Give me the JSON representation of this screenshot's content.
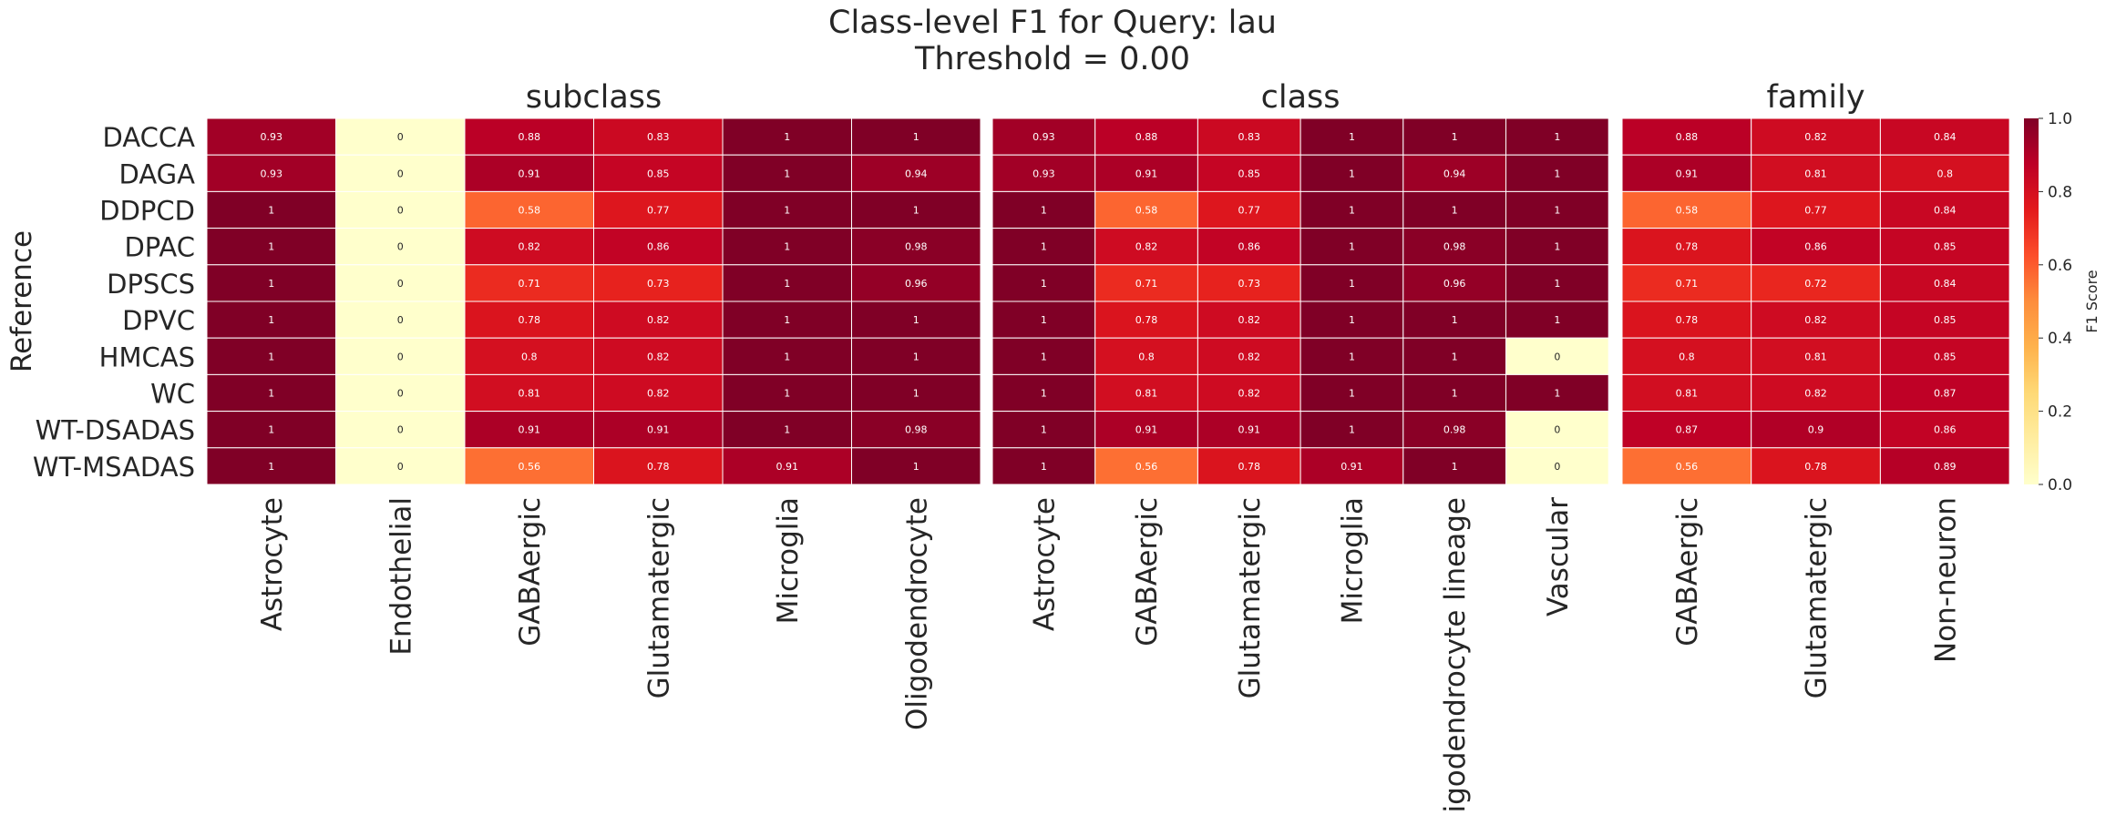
{
  "chart_data": {
    "type": "heatmap",
    "title": "Class-level F1 for Query: lau",
    "subtitle": "Threshold = 0.00",
    "ylabel": "Reference",
    "rows": [
      "DACCA",
      "DAGA",
      "DDPCD",
      "DPAC",
      "DPSCS",
      "DPVC",
      "HMCAS",
      "WC",
      "WT-DSADAS",
      "WT-MSADAS"
    ],
    "colorbar": {
      "label": "F1 Score",
      "range": [
        0.0,
        1.0
      ],
      "ticks": [
        "0.0",
        "0.2",
        "0.4",
        "0.6",
        "0.8",
        "1.0"
      ],
      "colormap": "YlOrRd"
    },
    "panels": [
      {
        "title": "subclass",
        "columns": [
          "Astrocyte",
          "Endothelial",
          "GABAergic",
          "Glutamatergic",
          "Microglia",
          "Oligodendrocyte"
        ],
        "values": [
          [
            0.93,
            0,
            0.88,
            0.83,
            1,
            1
          ],
          [
            0.93,
            0,
            0.91,
            0.85,
            1,
            0.94
          ],
          [
            1,
            0,
            0.58,
            0.77,
            1,
            1
          ],
          [
            1,
            0,
            0.82,
            0.86,
            1,
            0.98
          ],
          [
            1,
            0,
            0.71,
            0.73,
            1,
            0.96
          ],
          [
            1,
            0,
            0.78,
            0.82,
            1,
            1
          ],
          [
            1,
            0,
            0.8,
            0.82,
            1,
            1
          ],
          [
            1,
            0,
            0.81,
            0.82,
            1,
            1
          ],
          [
            1,
            0,
            0.91,
            0.91,
            1,
            0.98
          ],
          [
            1,
            0,
            0.56,
            0.78,
            0.91,
            1
          ]
        ]
      },
      {
        "title": "class",
        "columns": [
          "Astrocyte",
          "GABAergic",
          "Glutamatergic",
          "Microglia",
          "Oligodendrocyte lineage",
          "Vascular"
        ],
        "values": [
          [
            0.93,
            0.88,
            0.83,
            1,
            1,
            1
          ],
          [
            0.93,
            0.91,
            0.85,
            1,
            0.94,
            1
          ],
          [
            1,
            0.58,
            0.77,
            1,
            1,
            1
          ],
          [
            1,
            0.82,
            0.86,
            1,
            0.98,
            1
          ],
          [
            1,
            0.71,
            0.73,
            1,
            0.96,
            1
          ],
          [
            1,
            0.78,
            0.82,
            1,
            1,
            1
          ],
          [
            1,
            0.8,
            0.82,
            1,
            1,
            0
          ],
          [
            1,
            0.81,
            0.82,
            1,
            1,
            1
          ],
          [
            1,
            0.91,
            0.91,
            1,
            0.98,
            0
          ],
          [
            1,
            0.56,
            0.78,
            0.91,
            1,
            0
          ]
        ]
      },
      {
        "title": "family",
        "columns": [
          "GABAergic",
          "Glutamatergic",
          "Non-neuron"
        ],
        "values": [
          [
            0.88,
            0.82,
            0.84
          ],
          [
            0.91,
            0.81,
            0.8
          ],
          [
            0.58,
            0.77,
            0.84
          ],
          [
            0.78,
            0.86,
            0.85
          ],
          [
            0.71,
            0.72,
            0.84
          ],
          [
            0.78,
            0.82,
            0.85
          ],
          [
            0.8,
            0.81,
            0.85
          ],
          [
            0.81,
            0.82,
            0.87
          ],
          [
            0.87,
            0.9,
            0.86
          ],
          [
            0.56,
            0.78,
            0.89
          ]
        ]
      }
    ]
  }
}
